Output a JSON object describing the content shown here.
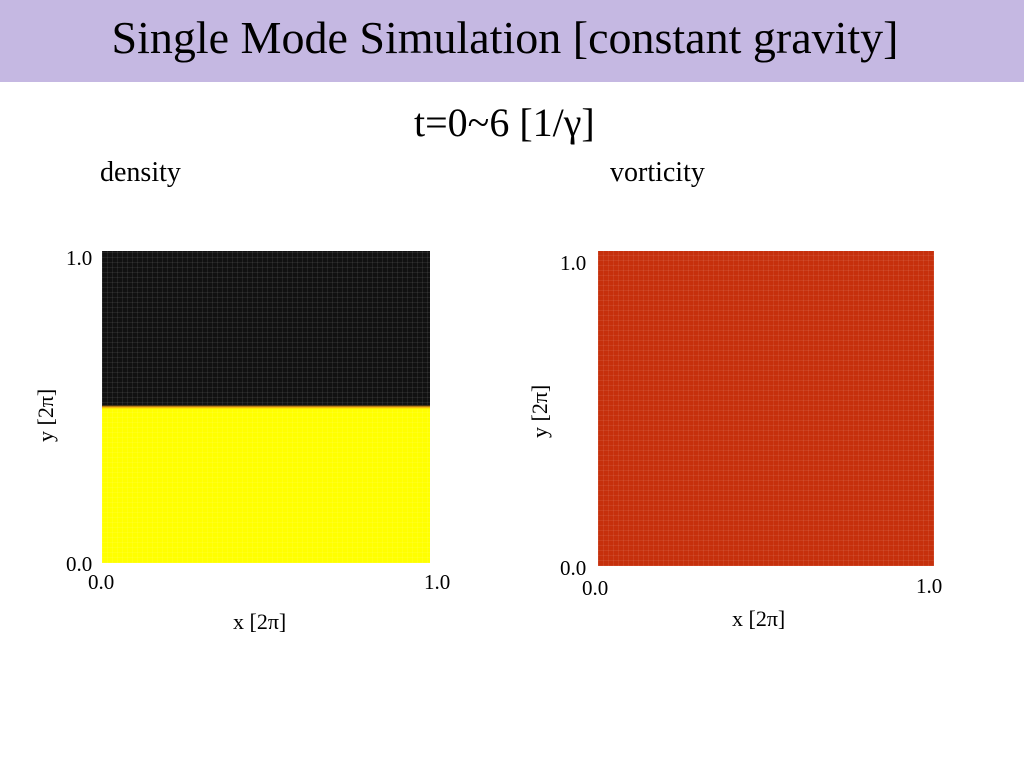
{
  "header": {
    "title": "Single Mode Simulation [constant gravity]",
    "subtitle": "t=0~6 [1/γ]"
  },
  "panels": {
    "density": {
      "label": "density",
      "ytick_top": "1.0",
      "ytick_bottom": "0.0",
      "xtick_left": "0.0",
      "xtick_right": "1.0",
      "xlabel": "x [2π]",
      "ylabel": "y [2π]"
    },
    "vorticity": {
      "label": "vorticity",
      "ytick_top": "1.0",
      "ytick_bottom": "0.0",
      "xtick_left": "0.0",
      "xtick_right": "1.0",
      "xlabel": "x [2π]",
      "ylabel": "y [2π]"
    }
  },
  "colors": {
    "title_bar": "#c5b8e2",
    "density_upper": "#111111",
    "density_lower": "#ffff00",
    "density_interface": "#f2a516",
    "vorticity_field": "#c6300c"
  },
  "chart_data": [
    {
      "type": "heatmap",
      "title": "density",
      "xlabel": "x [2π]",
      "ylabel": "y [2π]",
      "xlim": [
        0.0,
        1.0
      ],
      "ylim": [
        0.0,
        1.0
      ],
      "interface_y": 0.5,
      "regions": [
        {
          "y_range": [
            0.5,
            1.0
          ],
          "color": "#111111"
        },
        {
          "y_range": [
            0.0,
            0.5
          ],
          "color": "#ffff00"
        }
      ]
    },
    {
      "type": "heatmap",
      "title": "vorticity",
      "xlabel": "x [2π]",
      "ylabel": "y [2π]",
      "xlim": [
        0.0,
        1.0
      ],
      "ylim": [
        0.0,
        1.0
      ],
      "regions": [
        {
          "y_range": [
            0.0,
            1.0
          ],
          "color": "#c6300c"
        }
      ]
    }
  ]
}
